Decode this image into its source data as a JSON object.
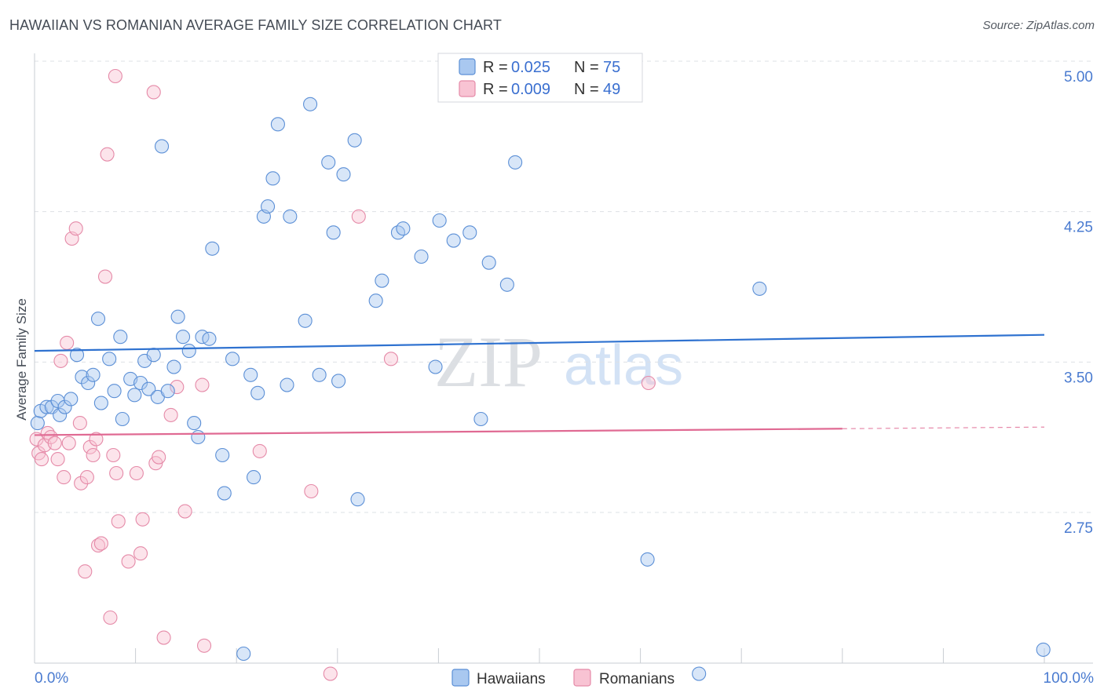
{
  "title": "HAWAIIAN VS ROMANIAN AVERAGE FAMILY SIZE CORRELATION CHART",
  "source": "Source: ZipAtlas.com",
  "watermark": {
    "zip": "ZIP",
    "atlas": "atlas"
  },
  "colors": {
    "hawaiian_fill": "#a9c8f0",
    "hawaiian_stroke": "#5b8fd6",
    "hawaiian_line": "#2f72d0",
    "romanian_fill": "#f8c3d3",
    "romanian_stroke": "#e58aa8",
    "romanian_line": "#e06a93",
    "tick_text": "#4a7bd0",
    "grid": "#dde0e5"
  },
  "legend": {
    "r_label": "R =",
    "n_label": "N =",
    "hawaiian": {
      "r": "0.025",
      "n": "75"
    },
    "romanian": {
      "r": "0.009",
      "n": "49"
    }
  },
  "chart_data": {
    "type": "scatter",
    "title": "HAWAIIAN VS ROMANIAN AVERAGE FAMILY SIZE CORRELATION CHART",
    "xlabel": "",
    "ylabel": "Average Family Size",
    "xlim": [
      0,
      100
    ],
    "ylim": [
      2.0,
      5.1
    ],
    "x_tick_labels": {
      "left": "0.0%",
      "right": "100.0%"
    },
    "y_ticks": [
      {
        "value": 5.0,
        "label": "5.00"
      },
      {
        "value": 4.25,
        "label": "4.25"
      },
      {
        "value": 3.5,
        "label": "3.50"
      },
      {
        "value": 2.75,
        "label": "2.75"
      }
    ],
    "grid": true,
    "series": [
      {
        "name": "Hawaiians",
        "trend": {
          "x0": 0,
          "y0": 3.63,
          "x1": 100,
          "y1": 3.71,
          "dashed_from": null
        },
        "points": [
          [
            0.3,
            3.27
          ],
          [
            0.6,
            3.33
          ],
          [
            1.2,
            3.35
          ],
          [
            1.7,
            3.35
          ],
          [
            2.3,
            3.38
          ],
          [
            2.5,
            3.31
          ],
          [
            3.0,
            3.35
          ],
          [
            3.6,
            3.39
          ],
          [
            4.2,
            3.61
          ],
          [
            4.7,
            3.5
          ],
          [
            5.3,
            3.47
          ],
          [
            5.8,
            3.51
          ],
          [
            6.3,
            3.79
          ],
          [
            6.6,
            3.37
          ],
          [
            7.4,
            3.59
          ],
          [
            7.9,
            3.43
          ],
          [
            8.5,
            3.7
          ],
          [
            8.7,
            3.29
          ],
          [
            9.5,
            3.49
          ],
          [
            9.9,
            3.41
          ],
          [
            10.5,
            3.47
          ],
          [
            10.9,
            3.58
          ],
          [
            11.3,
            3.44
          ],
          [
            11.8,
            3.61
          ],
          [
            12.2,
            3.4
          ],
          [
            12.6,
            4.65
          ],
          [
            13.2,
            3.43
          ],
          [
            13.8,
            3.55
          ],
          [
            14.2,
            3.8
          ],
          [
            14.7,
            3.7
          ],
          [
            15.3,
            3.63
          ],
          [
            15.8,
            3.27
          ],
          [
            16.2,
            3.2
          ],
          [
            16.6,
            3.7
          ],
          [
            17.3,
            3.69
          ],
          [
            17.6,
            4.14
          ],
          [
            18.6,
            3.11
          ],
          [
            18.8,
            2.92
          ],
          [
            19.6,
            3.59
          ],
          [
            20.7,
            2.12
          ],
          [
            21.4,
            3.51
          ],
          [
            21.7,
            3.0
          ],
          [
            22.1,
            3.42
          ],
          [
            22.7,
            4.3
          ],
          [
            23.1,
            4.35
          ],
          [
            23.6,
            4.49
          ],
          [
            24.1,
            4.76
          ],
          [
            25.0,
            3.46
          ],
          [
            25.3,
            4.3
          ],
          [
            26.8,
            3.78
          ],
          [
            27.3,
            4.86
          ],
          [
            28.2,
            3.51
          ],
          [
            29.1,
            4.57
          ],
          [
            29.6,
            4.22
          ],
          [
            30.1,
            3.48
          ],
          [
            30.6,
            4.51
          ],
          [
            31.7,
            4.68
          ],
          [
            32.0,
            2.89
          ],
          [
            33.8,
            3.88
          ],
          [
            34.4,
            3.98
          ],
          [
            36.0,
            4.22
          ],
          [
            36.5,
            4.24
          ],
          [
            38.3,
            4.1
          ],
          [
            39.7,
            3.55
          ],
          [
            40.1,
            4.28
          ],
          [
            41.5,
            4.18
          ],
          [
            43.1,
            4.22
          ],
          [
            44.2,
            3.29
          ],
          [
            45.0,
            4.07
          ],
          [
            46.8,
            3.96
          ],
          [
            47.6,
            4.57
          ],
          [
            60.7,
            2.59
          ],
          [
            65.8,
            2.02
          ],
          [
            71.8,
            3.94
          ],
          [
            99.9,
            2.14
          ]
        ]
      },
      {
        "name": "Romanians",
        "trend": {
          "x0": 0,
          "y0": 3.21,
          "x1": 100,
          "y1": 3.25,
          "dashed_from": 80
        },
        "points": [
          [
            0.2,
            3.19
          ],
          [
            0.4,
            3.12
          ],
          [
            0.7,
            3.09
          ],
          [
            1.0,
            3.16
          ],
          [
            1.3,
            3.22
          ],
          [
            1.6,
            3.2
          ],
          [
            2.0,
            3.17
          ],
          [
            2.3,
            3.09
          ],
          [
            2.6,
            3.58
          ],
          [
            2.9,
            3.0
          ],
          [
            3.2,
            3.67
          ],
          [
            3.4,
            3.17
          ],
          [
            3.7,
            4.19
          ],
          [
            4.1,
            4.24
          ],
          [
            4.5,
            3.27
          ],
          [
            4.6,
            2.97
          ],
          [
            5.0,
            2.53
          ],
          [
            5.2,
            3.0
          ],
          [
            5.5,
            3.15
          ],
          [
            5.8,
            3.11
          ],
          [
            6.1,
            3.19
          ],
          [
            6.3,
            2.66
          ],
          [
            6.6,
            2.67
          ],
          [
            7.0,
            4.0
          ],
          [
            7.2,
            4.61
          ],
          [
            7.5,
            2.3
          ],
          [
            7.8,
            3.11
          ],
          [
            8.0,
            5.0
          ],
          [
            8.1,
            3.02
          ],
          [
            8.3,
            2.78
          ],
          [
            9.3,
            2.58
          ],
          [
            10.1,
            3.02
          ],
          [
            10.5,
            2.62
          ],
          [
            10.7,
            2.79
          ],
          [
            11.8,
            4.92
          ],
          [
            12.0,
            3.07
          ],
          [
            12.3,
            3.1
          ],
          [
            12.8,
            2.2
          ],
          [
            13.5,
            3.31
          ],
          [
            14.1,
            3.45
          ],
          [
            14.9,
            2.83
          ],
          [
            16.6,
            3.46
          ],
          [
            16.8,
            2.16
          ],
          [
            22.3,
            3.13
          ],
          [
            27.4,
            2.93
          ],
          [
            29.3,
            2.02
          ],
          [
            32.1,
            4.3
          ],
          [
            35.3,
            3.59
          ],
          [
            60.8,
            3.47
          ]
        ]
      }
    ]
  }
}
